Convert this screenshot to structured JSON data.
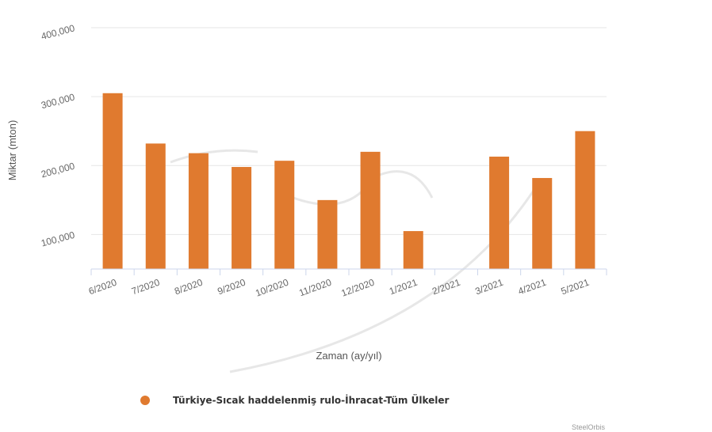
{
  "chart_data": {
    "type": "bar",
    "categories": [
      "6/2020",
      "7/2020",
      "8/2020",
      "9/2020",
      "10/2020",
      "11/2020",
      "12/2020",
      "1/2021",
      "2/2021",
      "3/2021",
      "4/2021",
      "5/2021"
    ],
    "series": [
      {
        "name": "Türkiye-Sıcak haddelenmiş rulo-İhracat-Tüm Ülkeler",
        "values": [
          305000,
          232000,
          218000,
          198000,
          207000,
          150000,
          220000,
          105000,
          5000,
          213000,
          182000,
          250000
        ]
      }
    ],
    "xlabel": "Zaman (ay/yıl)",
    "ylabel": "Miktar (mton)",
    "ylim": [
      50000,
      400000
    ],
    "yticks": [
      100000,
      200000,
      300000,
      400000
    ],
    "ytick_labels": [
      "100,000",
      "200,000",
      "300,000",
      "400,000"
    ],
    "grid": true,
    "legend_position": "bottom",
    "colors": {
      "bar": "#E07A2F",
      "grid": "#E6E6E6",
      "axis": "#CCD6EB"
    }
  },
  "credit": "SteelOrbis"
}
